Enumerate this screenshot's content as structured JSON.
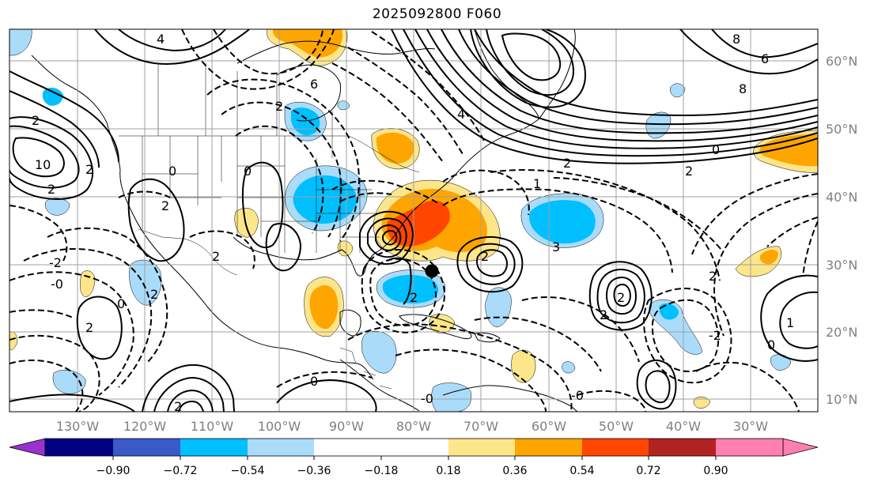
{
  "title": "2025092800 F060",
  "lat_labels": [
    "60°N",
    "50°N",
    "40°N",
    "30°N",
    "20°N",
    "10°N"
  ],
  "lon_labels": [
    "130°W",
    "120°W",
    "110°W",
    "100°W",
    "90°W",
    "80°W",
    "70°W",
    "60°W",
    "50°W",
    "40°W",
    "30°W"
  ],
  "colorbar": {
    "tick_labels": [
      "−0.90",
      "−0.72",
      "−0.54",
      "−0.36",
      "−0.18",
      "0.18",
      "0.36",
      "0.54",
      "0.72",
      "0.90"
    ],
    "colors": [
      "#9932cc",
      "#000080",
      "#3a5ac8",
      "#00bfff",
      "#aadcfa",
      "#ffffff",
      "#fde68a",
      "#ffa500",
      "#ff4500",
      "#b22222",
      "#ff80b0"
    ]
  },
  "contour_labels": [
    "4",
    "8",
    "6",
    "6",
    "2",
    "10",
    "2",
    "0",
    "2",
    "0",
    "2",
    "4",
    "8",
    "2",
    "0",
    "2",
    "-2",
    "-0",
    "2",
    "2",
    "2",
    "2",
    "1",
    "0",
    "2",
    "2",
    "-2",
    "-0",
    "0",
    "-0",
    "1",
    "2",
    "3",
    "2",
    "2",
    "2",
    "0"
  ],
  "colors": {
    "neg_light": "#aadcfa",
    "neg_mid": "#00bfff",
    "pos_light": "#fde68a",
    "pos_mid": "#ffa500",
    "pos_strong": "#ff4500",
    "grid": "#a0a0a0"
  },
  "marker": "black-dot"
}
